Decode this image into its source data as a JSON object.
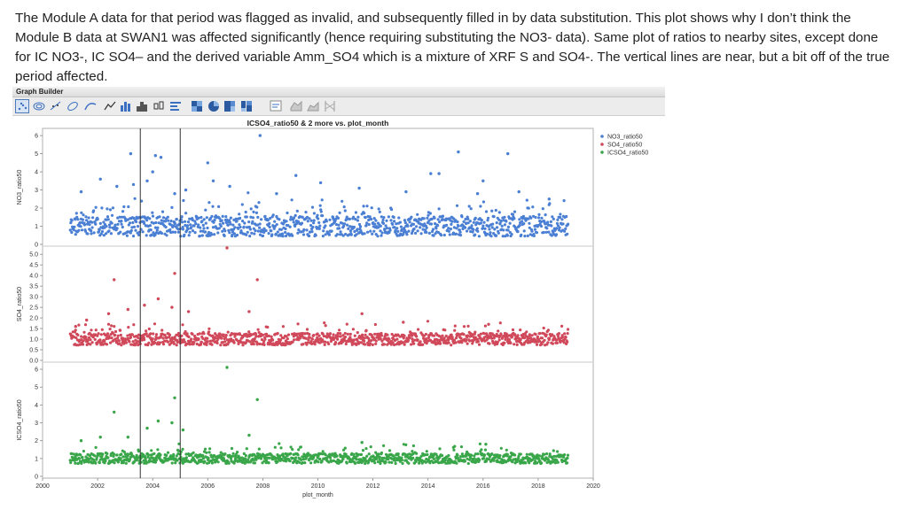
{
  "slide": {
    "text": "The Module A data for that period was flagged as invalid, and subsequently filled in by data substitution.  This plot shows why I don’t think the Module B data at SWAN1 was affected significantly (hence requiring substituting the NO3- data).  Same plot of ratios to nearby sites, except done for IC NO3-, IC SO4– and the derived variable Amm_SO4 which is a mixture of XRF S and SO4-.  The vertical lines are near, but a bit off of the true period affected."
  },
  "window": {
    "title": "Graph Builder",
    "toolbar_icons": [
      "points-icon",
      "contour-icon",
      "line-of-fit-icon",
      "ellipse-icon",
      "smoother-icon",
      "line-icon",
      "bar-icon",
      "histogram-icon",
      "box-plot-icon",
      "caption-box-icon",
      "heatmap-icon",
      "pie-icon",
      "treemap-icon",
      "mosaic-icon",
      "formula-icon",
      "map-shapes-icon",
      "area-icon",
      "parallel-icon"
    ]
  },
  "colors": {
    "no3": "#4a7fd4",
    "so4": "#d0495a",
    "icso4": "#3aa64a"
  },
  "chart_data": {
    "type": "scatter",
    "title": "ICSO4_ratio50 & 2 more vs. plot_month",
    "xlabel": "plot_month",
    "xlim": [
      2000,
      2020
    ],
    "x_ticks": [
      "2000",
      "2002",
      "2004",
      "2006",
      "2008",
      "2010",
      "2012",
      "2014",
      "2016",
      "2018",
      "2020"
    ],
    "reference_lines_x": [
      2003.55,
      2005.0
    ],
    "legend_position": "top-right",
    "panels": [
      {
        "series": "NO3_ratio50",
        "ylabel": "NO3_ratio50",
        "ylim": [
          0,
          6.3
        ],
        "y_ticks": [
          "0",
          "1",
          "2",
          "3",
          "4",
          "5",
          "6"
        ],
        "outliers": [
          [
            2001.4,
            2.9
          ],
          [
            2002.1,
            3.6
          ],
          [
            2002.7,
            3.2
          ],
          [
            2003.2,
            5.0
          ],
          [
            2003.3,
            3.3
          ],
          [
            2003.8,
            3.5
          ],
          [
            2004.0,
            4.0
          ],
          [
            2004.1,
            4.9
          ],
          [
            2004.3,
            4.8
          ],
          [
            2004.8,
            2.8
          ],
          [
            2005.2,
            3.0
          ],
          [
            2006.0,
            4.5
          ],
          [
            2006.2,
            3.5
          ],
          [
            2006.8,
            3.2
          ],
          [
            2007.9,
            6.0
          ],
          [
            2008.5,
            2.8
          ],
          [
            2009.2,
            3.8
          ],
          [
            2010.1,
            3.4
          ],
          [
            2011.5,
            3.1
          ],
          [
            2013.2,
            2.9
          ],
          [
            2014.1,
            3.9
          ],
          [
            2014.4,
            3.9
          ],
          [
            2015.1,
            5.1
          ],
          [
            2015.8,
            2.8
          ],
          [
            2016.0,
            3.5
          ],
          [
            2016.9,
            5.0
          ],
          [
            2017.3,
            2.9
          ],
          [
            2018.4,
            2.5
          ]
        ]
      },
      {
        "series": "SO4_ratio50",
        "ylabel": "SO4_ratio50",
        "ylim": [
          0,
          5.3
        ],
        "y_ticks": [
          "0.0",
          "0.5",
          "1.0",
          "1.5",
          "2.0",
          "2.5",
          "3.0",
          "3.5",
          "4.0",
          "4.5",
          "5.0"
        ],
        "outliers": [
          [
            2001.2,
            1.6
          ],
          [
            2001.6,
            1.9
          ],
          [
            2002.4,
            2.2
          ],
          [
            2002.6,
            3.8
          ],
          [
            2003.1,
            2.4
          ],
          [
            2003.7,
            2.6
          ],
          [
            2004.2,
            2.9
          ],
          [
            2004.8,
            4.1
          ],
          [
            2004.7,
            2.5
          ],
          [
            2005.3,
            2.3
          ],
          [
            2006.7,
            5.4
          ],
          [
            2007.5,
            2.3
          ],
          [
            2007.8,
            3.8
          ],
          [
            2011.6,
            2.2
          ],
          [
            2013.1,
            1.8
          ],
          [
            2016.2,
            1.7
          ]
        ]
      },
      {
        "series": "ICSO4_ratio50",
        "ylabel": "ICSO4_ratio50",
        "ylim": [
          0,
          6.3
        ],
        "y_ticks": [
          "0",
          "1",
          "2",
          "3",
          "4",
          "5",
          "6"
        ],
        "outliers": [
          [
            2001.4,
            2.0
          ],
          [
            2002.1,
            2.2
          ],
          [
            2002.6,
            3.6
          ],
          [
            2003.1,
            2.2
          ],
          [
            2003.8,
            2.7
          ],
          [
            2004.2,
            3.1
          ],
          [
            2004.8,
            4.4
          ],
          [
            2004.7,
            3.0
          ],
          [
            2005.1,
            2.6
          ],
          [
            2006.7,
            6.1
          ],
          [
            2007.5,
            2.3
          ],
          [
            2007.8,
            4.3
          ],
          [
            2011.6,
            1.9
          ],
          [
            2016.1,
            1.8
          ]
        ]
      }
    ],
    "base_series": {
      "x_range": [
        2001.0,
        2019.1
      ],
      "points_per_year": 61,
      "median_y": 1.0
    }
  }
}
